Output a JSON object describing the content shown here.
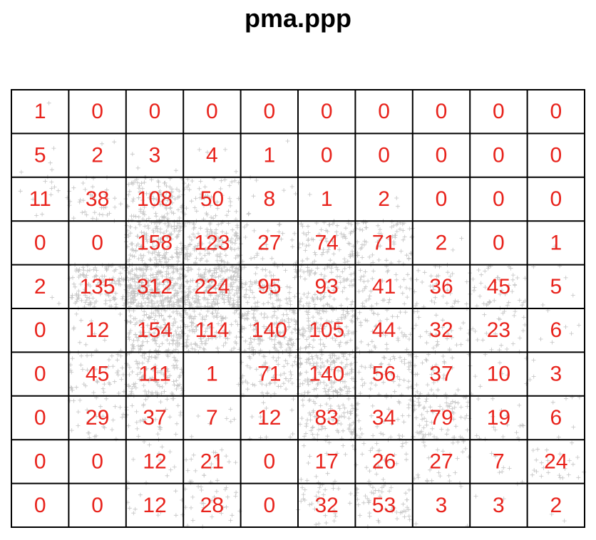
{
  "chart_data": {
    "type": "table",
    "title": "pma.ppp",
    "rows": 10,
    "cols": 10,
    "grid": true,
    "count_color": "#e8231c",
    "point_color": "#7a7a7a",
    "line_color": "#000000",
    "counts": [
      [
        1,
        0,
        0,
        0,
        0,
        0,
        0,
        0,
        0,
        0
      ],
      [
        5,
        2,
        3,
        4,
        1,
        0,
        0,
        0,
        0,
        0
      ],
      [
        11,
        38,
        108,
        50,
        8,
        1,
        2,
        0,
        0,
        0
      ],
      [
        0,
        0,
        158,
        123,
        27,
        74,
        71,
        2,
        0,
        1
      ],
      [
        2,
        135,
        312,
        224,
        95,
        93,
        41,
        36,
        45,
        5
      ],
      [
        0,
        12,
        154,
        114,
        140,
        105,
        44,
        32,
        23,
        6
      ],
      [
        0,
        45,
        111,
        1,
        71,
        140,
        56,
        37,
        10,
        3
      ],
      [
        0,
        29,
        37,
        7,
        12,
        83,
        34,
        79,
        19,
        6
      ],
      [
        0,
        0,
        12,
        21,
        0,
        17,
        26,
        27,
        7,
        24
      ],
      [
        0,
        0,
        12,
        28,
        0,
        32,
        53,
        3,
        3,
        2
      ]
    ],
    "point_marker": "+"
  }
}
